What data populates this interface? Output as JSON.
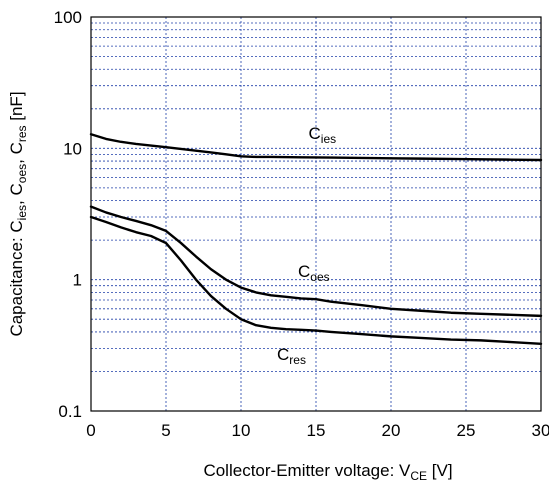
{
  "chart_data": {
    "type": "line",
    "xscale": "linear",
    "yscale": "log",
    "xlim": [
      0,
      30
    ],
    "ylim": [
      0.1,
      100
    ],
    "grid": true,
    "x_ticks": [
      0,
      5,
      10,
      15,
      20,
      25,
      30
    ],
    "x_tick_labels": [
      "0",
      "5",
      "10",
      "15",
      "20",
      "25",
      "30"
    ],
    "y_ticks": [
      0.1,
      1,
      10,
      100
    ],
    "y_tick_labels": [
      "0.1",
      "1",
      "10",
      "100"
    ],
    "xlabel": {
      "text": "Collector-Emitter voltage: V",
      "sub": "CE",
      "unit": " [V]"
    },
    "ylabel": [
      {
        "t": "Capacitance: C"
      },
      {
        "s": "ies"
      },
      {
        "t": ", C"
      },
      {
        "s": "oes"
      },
      {
        "t": ", C"
      },
      {
        "s": "res"
      },
      {
        "t": " [nF]"
      }
    ],
    "series": [
      {
        "name": "Cies",
        "label_main": "C",
        "label_sub": "ies",
        "label_at": [
          14.5,
          11.8
        ],
        "x": [
          0,
          1,
          2,
          3,
          4,
          5,
          6,
          7,
          8,
          9,
          10,
          11,
          12,
          14,
          16,
          18,
          20,
          22,
          24,
          26,
          28,
          30
        ],
        "y": [
          12.8,
          11.8,
          11.2,
          10.8,
          10.5,
          10.2,
          9.9,
          9.6,
          9.3,
          9.0,
          8.7,
          8.6,
          8.6,
          8.55,
          8.5,
          8.45,
          8.4,
          8.35,
          8.3,
          8.25,
          8.2,
          8.15
        ]
      },
      {
        "name": "Coes",
        "label_main": "C",
        "label_sub": "oes",
        "label_at": [
          13.8,
          1.05
        ],
        "x": [
          0,
          1,
          2,
          3,
          4,
          5,
          6,
          7,
          8,
          9,
          10,
          11,
          12,
          13,
          14,
          15,
          16,
          18,
          20,
          22,
          24,
          26,
          28,
          30
        ],
        "y": [
          3.6,
          3.25,
          3.0,
          2.8,
          2.6,
          2.35,
          1.9,
          1.5,
          1.2,
          1.0,
          0.87,
          0.8,
          0.76,
          0.74,
          0.72,
          0.71,
          0.68,
          0.64,
          0.6,
          0.58,
          0.56,
          0.55,
          0.54,
          0.53
        ]
      },
      {
        "name": "Cres",
        "label_main": "C",
        "label_sub": "res",
        "label_at": [
          12.4,
          0.245
        ],
        "x": [
          0,
          1,
          2,
          3,
          4,
          5,
          6,
          7,
          8,
          9,
          10,
          11,
          12,
          13,
          14,
          15,
          16,
          18,
          20,
          22,
          24,
          26,
          28,
          30
        ],
        "y": [
          3.0,
          2.75,
          2.5,
          2.3,
          2.15,
          1.9,
          1.4,
          1.0,
          0.75,
          0.6,
          0.5,
          0.45,
          0.43,
          0.42,
          0.415,
          0.41,
          0.4,
          0.385,
          0.37,
          0.36,
          0.35,
          0.345,
          0.335,
          0.325
        ]
      }
    ]
  }
}
